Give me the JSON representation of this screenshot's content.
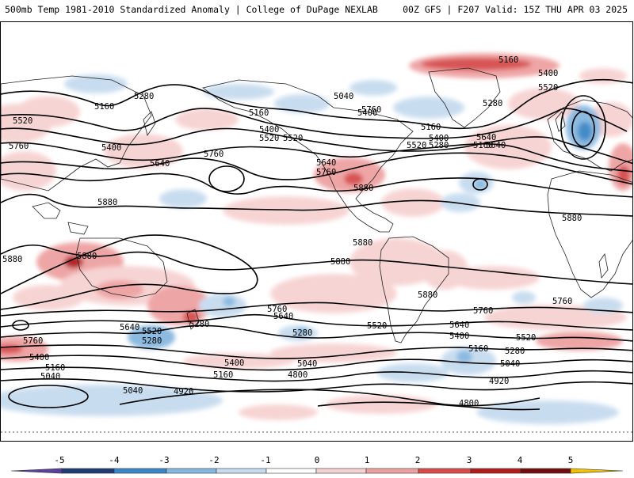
{
  "header": {
    "left_title": "500mb Temp 1981-2010 Standardized Anomaly | College of DuPage NEXLAB",
    "right_title": "00Z GFS | F207 Valid: 15Z THU APR 03 2025"
  },
  "contour_labels": [
    "5160",
    "5400",
    "5520",
    "5280",
    "5160",
    "5040",
    "5280",
    "5160",
    "5400",
    "5520",
    "5520",
    "5760",
    "5400",
    "5640",
    "5760",
    "5640",
    "5760",
    "5640",
    "5400",
    "5160",
    "5400",
    "5520",
    "5160",
    "5640",
    "5760",
    "5280",
    "5880",
    "5880",
    "5880",
    "5880",
    "5880",
    "5880",
    "5880",
    "5880",
    "5760",
    "5760",
    "5640",
    "5520",
    "5280",
    "5640",
    "5520",
    "5280",
    "5760",
    "5400",
    "5160",
    "5040",
    "5280",
    "5400",
    "5160",
    "5040",
    "4800",
    "4920",
    "5040",
    "5640",
    "5400",
    "5160",
    "5280",
    "5040",
    "4920",
    "5760",
    "5520",
    "4800",
    "5520"
  ],
  "colorbar": {
    "ticks": [
      "-5",
      "-4",
      "-3",
      "-2",
      "-1",
      "0",
      "1",
      "2",
      "3",
      "4",
      "5"
    ],
    "colors": {
      "neg_5": "#5a3f9c",
      "neg_4": "#1f3b73",
      "neg_3": "#3b86c6",
      "neg_2": "#86b7df",
      "neg_1": "#c6dbef",
      "zero": "#ffffff",
      "pos_1": "#f7d2d2",
      "pos_2": "#eea1a1",
      "pos_3": "#d74b4b",
      "pos_4": "#b01d1d",
      "pos_5": "#720d0d",
      "over": "#f2c200"
    }
  }
}
